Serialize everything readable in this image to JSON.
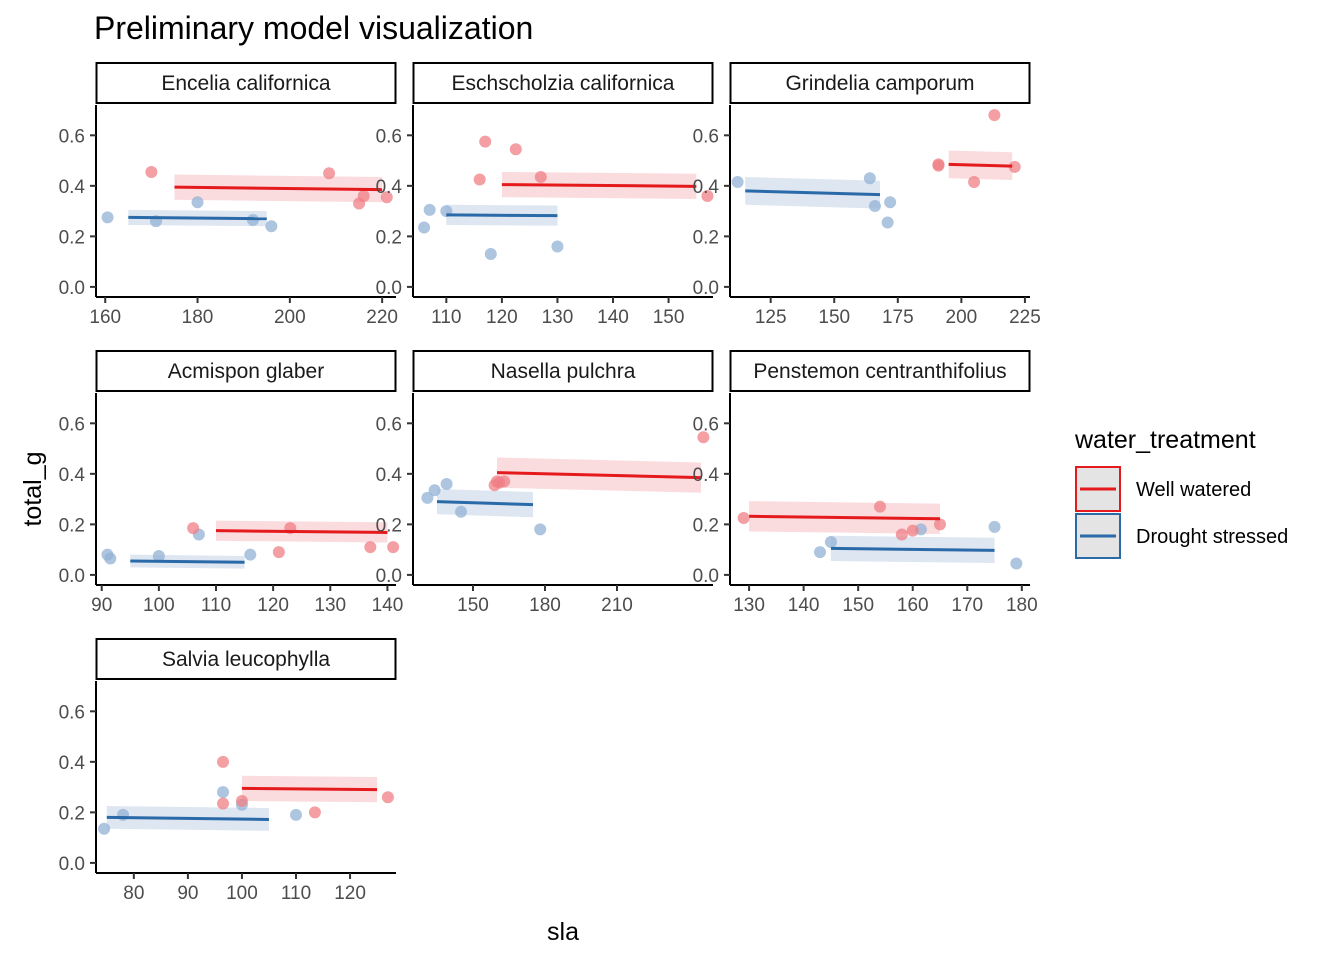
{
  "chart_data": {
    "type": "scatter",
    "title": "Preliminary model visualization",
    "xlabel": "sla",
    "ylabel": "total_g",
    "ylim": [
      -0.04,
      0.72
    ],
    "y_ticks": [
      0.0,
      0.2,
      0.4,
      0.6
    ],
    "y_tick_labels": [
      "0.0",
      "0.2",
      "0.4",
      "0.6"
    ],
    "grid": false,
    "legend": {
      "title": "water_treatment",
      "position": "right",
      "entries": [
        {
          "label": "Well watered",
          "color": "#e41a1c"
        },
        {
          "label": "Drought stressed",
          "color": "#2b6aa8"
        }
      ]
    },
    "colors": {
      "well_watered": "#e41a1c",
      "drought_stressed": "#2b6aa8",
      "well_watered_point": "#ef7f86",
      "drought_stressed_point": "#93b2d6"
    },
    "panels": [
      {
        "species": "Encelia californica",
        "xlim": [
          158,
          223
        ],
        "x_ticks": [
          160,
          180,
          200,
          220
        ],
        "x_tick_labels": [
          "160",
          "180",
          "200",
          "220"
        ],
        "well_watered": {
          "points": [
            [
              170,
              0.455
            ],
            [
              208.5,
              0.45
            ],
            [
              216,
              0.36
            ],
            [
              215,
              0.33
            ],
            [
              221,
              0.355
            ]
          ],
          "fit": {
            "x": [
              175,
              220
            ],
            "y": [
              0.395,
              0.385
            ],
            "band": 0.05
          }
        },
        "drought_stressed": {
          "points": [
            [
              160.5,
              0.275
            ],
            [
              171,
              0.26
            ],
            [
              180,
              0.335
            ],
            [
              192,
              0.265
            ],
            [
              196,
              0.24
            ]
          ],
          "fit": {
            "x": [
              165,
              195
            ],
            "y": [
              0.275,
              0.27
            ],
            "band": 0.03
          }
        }
      },
      {
        "species": "Eschscholzia californica",
        "xlim": [
          104,
          158
        ],
        "x_ticks": [
          110,
          120,
          130,
          140,
          150
        ],
        "x_tick_labels": [
          "110",
          "120",
          "130",
          "140",
          "150"
        ],
        "well_watered": {
          "points": [
            [
              116,
              0.425
            ],
            [
              117,
              0.575
            ],
            [
              122.5,
              0.545
            ],
            [
              127,
              0.435
            ],
            [
              157,
              0.36
            ]
          ],
          "fit": {
            "x": [
              120,
              155
            ],
            "y": [
              0.405,
              0.398
            ],
            "band": 0.05
          }
        },
        "drought_stressed": {
          "points": [
            [
              106,
              0.235
            ],
            [
              107,
              0.305
            ],
            [
              110,
              0.3
            ],
            [
              118,
              0.13
            ],
            [
              130,
              0.16
            ]
          ],
          "fit": {
            "x": [
              110,
              130
            ],
            "y": [
              0.285,
              0.282
            ],
            "band": 0.04
          }
        }
      },
      {
        "species": "Grindelia camporum",
        "xlim": [
          109,
          227
        ],
        "x_ticks": [
          125,
          150,
          175,
          200,
          225
        ],
        "x_tick_labels": [
          "125",
          "150",
          "175",
          "200",
          "225"
        ],
        "well_watered": {
          "points": [
            [
              191,
              0.48
            ],
            [
              191,
              0.485
            ],
            [
              205,
              0.415
            ],
            [
              213,
              0.68
            ],
            [
              221,
              0.475
            ]
          ],
          "fit": {
            "x": [
              195,
              220
            ],
            "y": [
              0.485,
              0.478
            ],
            "band": 0.055
          }
        },
        "drought_stressed": {
          "points": [
            [
              112,
              0.415
            ],
            [
              164,
              0.43
            ],
            [
              166,
              0.32
            ],
            [
              171,
              0.255
            ],
            [
              172,
              0.335
            ]
          ],
          "fit": {
            "x": [
              115,
              168
            ],
            "y": [
              0.38,
              0.365
            ],
            "band": 0.055
          }
        }
      },
      {
        "species": "Acmispon glaber",
        "xlim": [
          89,
          141.5
        ],
        "x_ticks": [
          90,
          100,
          110,
          120,
          130,
          140
        ],
        "x_tick_labels": [
          "90",
          "100",
          "110",
          "120",
          "130",
          "140"
        ],
        "well_watered": {
          "points": [
            [
              106,
              0.185
            ],
            [
              121,
              0.09
            ],
            [
              123,
              0.185
            ],
            [
              137,
              0.11
            ],
            [
              141,
              0.11
            ]
          ],
          "fit": {
            "x": [
              110,
              140
            ],
            "y": [
              0.175,
              0.168
            ],
            "band": 0.04
          }
        },
        "drought_stressed": {
          "points": [
            [
              91,
              0.08
            ],
            [
              91.5,
              0.065
            ],
            [
              100,
              0.075
            ],
            [
              107,
              0.16
            ],
            [
              116,
              0.08
            ]
          ],
          "fit": {
            "x": [
              95,
              115
            ],
            "y": [
              0.055,
              0.05
            ],
            "band": 0.025
          }
        }
      },
      {
        "species": "Nasella pulchra",
        "xlim": [
          125,
          250
        ],
        "x_ticks": [
          150,
          180,
          210
        ],
        "x_tick_labels": [
          "150",
          "180",
          "210"
        ],
        "well_watered": {
          "points": [
            [
              159,
              0.355
            ],
            [
              160,
              0.37
            ],
            [
              161,
              0.365
            ],
            [
              163,
              0.37
            ],
            [
              246,
              0.545
            ]
          ],
          "fit": {
            "x": [
              160,
              245
            ],
            "y": [
              0.405,
              0.385
            ],
            "band": 0.06
          }
        },
        "drought_stressed": {
          "points": [
            [
              131,
              0.305
            ],
            [
              134,
              0.335
            ],
            [
              139,
              0.36
            ],
            [
              145,
              0.25
            ],
            [
              178,
              0.18
            ]
          ],
          "fit": {
            "x": [
              135,
              175
            ],
            "y": [
              0.29,
              0.278
            ],
            "band": 0.05
          }
        }
      },
      {
        "species": "Penstemon centranthifolius",
        "xlim": [
          126.5,
          181.5
        ],
        "x_ticks": [
          130,
          140,
          150,
          160,
          170,
          180
        ],
        "x_tick_labels": [
          "130",
          "140",
          "150",
          "160",
          "170",
          "180"
        ],
        "well_watered": {
          "points": [
            [
              129,
              0.225
            ],
            [
              154,
              0.27
            ],
            [
              158,
              0.16
            ],
            [
              160,
              0.175
            ],
            [
              165,
              0.2
            ]
          ],
          "fit": {
            "x": [
              130,
              165
            ],
            "y": [
              0.232,
              0.222
            ],
            "band": 0.06
          }
        },
        "drought_stressed": {
          "points": [
            [
              143,
              0.09
            ],
            [
              145,
              0.13
            ],
            [
              161.5,
              0.18
            ],
            [
              175,
              0.19
            ],
            [
              179,
              0.045
            ]
          ],
          "fit": {
            "x": [
              145,
              175
            ],
            "y": [
              0.105,
              0.097
            ],
            "band": 0.05
          }
        }
      },
      {
        "species": "Salvia leucophylla",
        "xlim": [
          73,
          128.5
        ],
        "x_ticks": [
          80,
          90,
          100,
          110,
          120
        ],
        "x_tick_labels": [
          "80",
          "90",
          "100",
          "110",
          "120"
        ],
        "well_watered": {
          "points": [
            [
              96.5,
              0.4
            ],
            [
              96.5,
              0.235
            ],
            [
              100,
              0.245
            ],
            [
              113.5,
              0.2
            ],
            [
              127,
              0.26
            ]
          ],
          "fit": {
            "x": [
              100,
              125
            ],
            "y": [
              0.295,
              0.29
            ],
            "band": 0.05
          }
        },
        "drought_stressed": {
          "points": [
            [
              74.5,
              0.135
            ],
            [
              78,
              0.19
            ],
            [
              96.5,
              0.28
            ],
            [
              100,
              0.23
            ],
            [
              110,
              0.19
            ]
          ],
          "fit": {
            "x": [
              75,
              105
            ],
            "y": [
              0.18,
              0.172
            ],
            "band": 0.045
          }
        }
      }
    ]
  }
}
